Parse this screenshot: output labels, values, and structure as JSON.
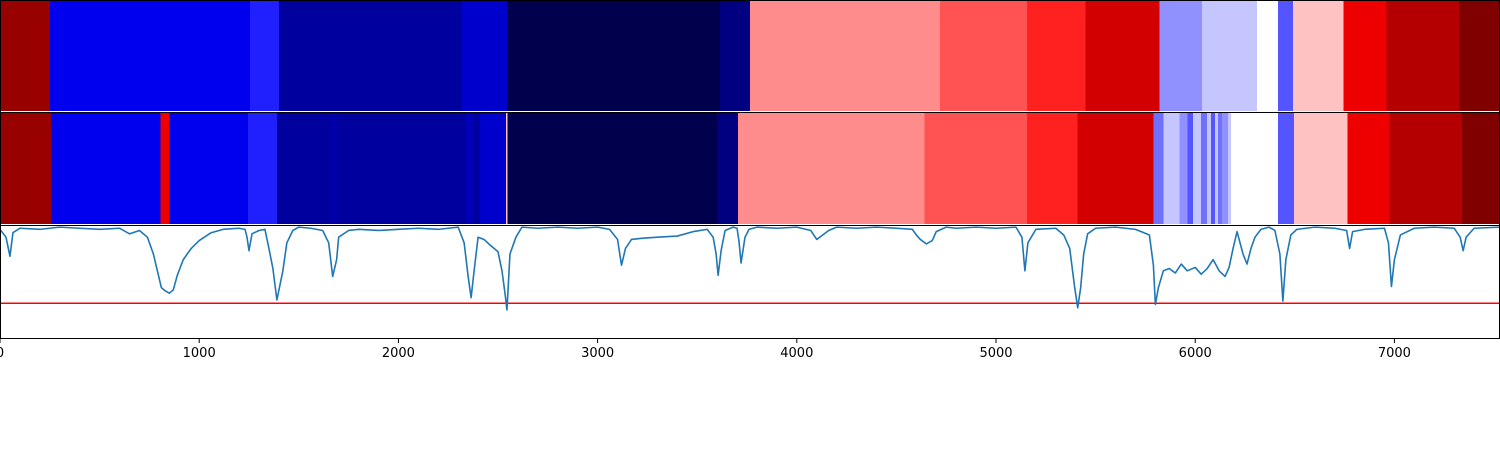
{
  "chart_data": {
    "type": "heatmap",
    "x_range": [
      0,
      7530
    ],
    "x_ticks": [
      0,
      1000,
      2000,
      3000,
      4000,
      5000,
      6000,
      7000
    ],
    "colormap": "seismic",
    "rows": [
      {
        "name": "segments-top",
        "segments": [
          {
            "start": 0,
            "end": 250,
            "color": "#990000"
          },
          {
            "start": 250,
            "end": 1255,
            "color": "#0000ee"
          },
          {
            "start": 1255,
            "end": 1400,
            "color": "#2020ff"
          },
          {
            "start": 1400,
            "end": 2320,
            "color": "#00009f"
          },
          {
            "start": 2320,
            "end": 2545,
            "color": "#0000cc"
          },
          {
            "start": 2545,
            "end": 3615,
            "color": "#00004c"
          },
          {
            "start": 3615,
            "end": 3765,
            "color": "#000080"
          },
          {
            "start": 3765,
            "end": 4720,
            "color": "#ff8c8c"
          },
          {
            "start": 4720,
            "end": 5155,
            "color": "#ff5252"
          },
          {
            "start": 5155,
            "end": 5450,
            "color": "#ff2020"
          },
          {
            "start": 5450,
            "end": 5820,
            "color": "#d20000"
          },
          {
            "start": 5820,
            "end": 6035,
            "color": "#9090ff"
          },
          {
            "start": 6035,
            "end": 6310,
            "color": "#c6c6ff"
          },
          {
            "start": 6310,
            "end": 6415,
            "color": "#ffffff"
          },
          {
            "start": 6415,
            "end": 6490,
            "color": "#5555ff"
          },
          {
            "start": 6490,
            "end": 6745,
            "color": "#ffc2c2"
          },
          {
            "start": 6745,
            "end": 6960,
            "color": "#ee0000"
          },
          {
            "start": 6960,
            "end": 7325,
            "color": "#b40000"
          },
          {
            "start": 7325,
            "end": 7530,
            "color": "#800000"
          }
        ]
      },
      {
        "name": "segments-bottom",
        "segments": [
          {
            "start": 0,
            "end": 255,
            "color": "#990000"
          },
          {
            "start": 255,
            "end": 805,
            "color": "#0000ee"
          },
          {
            "start": 805,
            "end": 850,
            "color": "#ee0000"
          },
          {
            "start": 850,
            "end": 1245,
            "color": "#0000ee"
          },
          {
            "start": 1245,
            "end": 1390,
            "color": "#2020ff"
          },
          {
            "start": 1390,
            "end": 1660,
            "color": "#00009f"
          },
          {
            "start": 1660,
            "end": 1690,
            "color": "#0000aa"
          },
          {
            "start": 1690,
            "end": 2340,
            "color": "#00009f"
          },
          {
            "start": 2340,
            "end": 2380,
            "color": "#0000b8"
          },
          {
            "start": 2380,
            "end": 2410,
            "color": "#00009f"
          },
          {
            "start": 2410,
            "end": 2540,
            "color": "#0000cc"
          },
          {
            "start": 2540,
            "end": 2548,
            "color": "#ffc2c2"
          },
          {
            "start": 2548,
            "end": 3600,
            "color": "#00004c"
          },
          {
            "start": 3600,
            "end": 3705,
            "color": "#000080"
          },
          {
            "start": 3705,
            "end": 4640,
            "color": "#ff8c8c"
          },
          {
            "start": 4640,
            "end": 5155,
            "color": "#ff5252"
          },
          {
            "start": 5155,
            "end": 5410,
            "color": "#ff2020"
          },
          {
            "start": 5410,
            "end": 5790,
            "color": "#d20000"
          },
          {
            "start": 5790,
            "end": 5840,
            "color": "#7070ff"
          },
          {
            "start": 5840,
            "end": 5920,
            "color": "#c6c6ff"
          },
          {
            "start": 5920,
            "end": 5960,
            "color": "#9090ff"
          },
          {
            "start": 5960,
            "end": 5990,
            "color": "#5555ff"
          },
          {
            "start": 5990,
            "end": 6030,
            "color": "#c6c6ff"
          },
          {
            "start": 6030,
            "end": 6060,
            "color": "#7070ff"
          },
          {
            "start": 6060,
            "end": 6080,
            "color": "#c6c6ff"
          },
          {
            "start": 6080,
            "end": 6100,
            "color": "#5555ff"
          },
          {
            "start": 6100,
            "end": 6115,
            "color": "#c6c6ff"
          },
          {
            "start": 6115,
            "end": 6135,
            "color": "#7070ff"
          },
          {
            "start": 6135,
            "end": 6165,
            "color": "#9090ff"
          },
          {
            "start": 6165,
            "end": 6180,
            "color": "#c6c6ff"
          },
          {
            "start": 6180,
            "end": 6415,
            "color": "#ffffff"
          },
          {
            "start": 6415,
            "end": 6495,
            "color": "#5555ff"
          },
          {
            "start": 6495,
            "end": 6765,
            "color": "#ffc2c2"
          },
          {
            "start": 6765,
            "end": 6975,
            "color": "#ee0000"
          },
          {
            "start": 6975,
            "end": 7340,
            "color": "#b40000"
          },
          {
            "start": 7340,
            "end": 7530,
            "color": "#800000"
          }
        ]
      }
    ],
    "line_series": {
      "name": "signal",
      "color": "#1f77b4",
      "y_range": [
        0,
        1
      ],
      "threshold": {
        "value": 0.31,
        "color": "#ff0000"
      },
      "points": [
        [
          0,
          0.97
        ],
        [
          30,
          0.9
        ],
        [
          50,
          0.73
        ],
        [
          65,
          0.94
        ],
        [
          100,
          0.98
        ],
        [
          200,
          0.97
        ],
        [
          300,
          0.99
        ],
        [
          400,
          0.98
        ],
        [
          500,
          0.97
        ],
        [
          600,
          0.98
        ],
        [
          650,
          0.93
        ],
        [
          700,
          0.96
        ],
        [
          740,
          0.9
        ],
        [
          770,
          0.75
        ],
        [
          790,
          0.6
        ],
        [
          810,
          0.45
        ],
        [
          830,
          0.42
        ],
        [
          850,
          0.4
        ],
        [
          870,
          0.43
        ],
        [
          890,
          0.56
        ],
        [
          920,
          0.7
        ],
        [
          960,
          0.8
        ],
        [
          1000,
          0.87
        ],
        [
          1060,
          0.94
        ],
        [
          1120,
          0.97
        ],
        [
          1200,
          0.98
        ],
        [
          1230,
          0.97
        ],
        [
          1240,
          0.9
        ],
        [
          1250,
          0.78
        ],
        [
          1265,
          0.93
        ],
        [
          1300,
          0.96
        ],
        [
          1330,
          0.97
        ],
        [
          1350,
          0.8
        ],
        [
          1370,
          0.62
        ],
        [
          1390,
          0.34
        ],
        [
          1405,
          0.47
        ],
        [
          1420,
          0.6
        ],
        [
          1440,
          0.85
        ],
        [
          1470,
          0.96
        ],
        [
          1500,
          0.99
        ],
        [
          1560,
          0.98
        ],
        [
          1620,
          0.96
        ],
        [
          1650,
          0.85
        ],
        [
          1670,
          0.55
        ],
        [
          1690,
          0.7
        ],
        [
          1700,
          0.9
        ],
        [
          1750,
          0.96
        ],
        [
          1800,
          0.97
        ],
        [
          1900,
          0.96
        ],
        [
          2000,
          0.97
        ],
        [
          2100,
          0.98
        ],
        [
          2200,
          0.97
        ],
        [
          2300,
          0.99
        ],
        [
          2330,
          0.85
        ],
        [
          2350,
          0.55
        ],
        [
          2365,
          0.36
        ],
        [
          2380,
          0.6
        ],
        [
          2400,
          0.9
        ],
        [
          2430,
          0.88
        ],
        [
          2460,
          0.83
        ],
        [
          2480,
          0.8
        ],
        [
          2500,
          0.77
        ],
        [
          2520,
          0.6
        ],
        [
          2535,
          0.4
        ],
        [
          2545,
          0.25
        ],
        [
          2560,
          0.75
        ],
        [
          2590,
          0.9
        ],
        [
          2620,
          0.99
        ],
        [
          2700,
          0.98
        ],
        [
          2800,
          0.99
        ],
        [
          2900,
          0.98
        ],
        [
          3000,
          0.99
        ],
        [
          3060,
          0.97
        ],
        [
          3100,
          0.88
        ],
        [
          3120,
          0.65
        ],
        [
          3140,
          0.8
        ],
        [
          3170,
          0.88
        ],
        [
          3220,
          0.89
        ],
        [
          3300,
          0.9
        ],
        [
          3400,
          0.91
        ],
        [
          3480,
          0.95
        ],
        [
          3550,
          0.97
        ],
        [
          3580,
          0.9
        ],
        [
          3595,
          0.75
        ],
        [
          3605,
          0.56
        ],
        [
          3620,
          0.78
        ],
        [
          3640,
          0.96
        ],
        [
          3680,
          0.99
        ],
        [
          3700,
          0.98
        ],
        [
          3710,
          0.86
        ],
        [
          3720,
          0.67
        ],
        [
          3740,
          0.9
        ],
        [
          3760,
          0.97
        ],
        [
          3800,
          0.99
        ],
        [
          3900,
          0.98
        ],
        [
          4000,
          0.99
        ],
        [
          4070,
          0.96
        ],
        [
          4100,
          0.88
        ],
        [
          4130,
          0.92
        ],
        [
          4160,
          0.96
        ],
        [
          4200,
          0.99
        ],
        [
          4300,
          0.98
        ],
        [
          4400,
          0.99
        ],
        [
          4500,
          0.98
        ],
        [
          4580,
          0.97
        ],
        [
          4600,
          0.92
        ],
        [
          4620,
          0.88
        ],
        [
          4650,
          0.84
        ],
        [
          4680,
          0.87
        ],
        [
          4700,
          0.95
        ],
        [
          4750,
          0.99
        ],
        [
          4800,
          0.98
        ],
        [
          4900,
          0.99
        ],
        [
          5000,
          0.98
        ],
        [
          5100,
          0.99
        ],
        [
          5130,
          0.9
        ],
        [
          5145,
          0.6
        ],
        [
          5160,
          0.85
        ],
        [
          5200,
          0.97
        ],
        [
          5300,
          0.98
        ],
        [
          5340,
          0.92
        ],
        [
          5370,
          0.8
        ],
        [
          5395,
          0.45
        ],
        [
          5410,
          0.27
        ],
        [
          5425,
          0.45
        ],
        [
          5440,
          0.75
        ],
        [
          5460,
          0.93
        ],
        [
          5500,
          0.98
        ],
        [
          5600,
          0.99
        ],
        [
          5700,
          0.97
        ],
        [
          5770,
          0.92
        ],
        [
          5790,
          0.65
        ],
        [
          5800,
          0.3
        ],
        [
          5815,
          0.45
        ],
        [
          5840,
          0.6
        ],
        [
          5870,
          0.62
        ],
        [
          5900,
          0.58
        ],
        [
          5930,
          0.66
        ],
        [
          5960,
          0.6
        ],
        [
          6000,
          0.63
        ],
        [
          6030,
          0.57
        ],
        [
          6060,
          0.62
        ],
        [
          6090,
          0.7
        ],
        [
          6120,
          0.6
        ],
        [
          6150,
          0.55
        ],
        [
          6170,
          0.63
        ],
        [
          6190,
          0.8
        ],
        [
          6210,
          0.95
        ],
        [
          6240,
          0.75
        ],
        [
          6260,
          0.66
        ],
        [
          6280,
          0.8
        ],
        [
          6300,
          0.9
        ],
        [
          6330,
          0.97
        ],
        [
          6370,
          0.99
        ],
        [
          6400,
          0.96
        ],
        [
          6425,
          0.75
        ],
        [
          6440,
          0.33
        ],
        [
          6455,
          0.7
        ],
        [
          6480,
          0.92
        ],
        [
          6510,
          0.97
        ],
        [
          6600,
          0.99
        ],
        [
          6700,
          0.98
        ],
        [
          6760,
          0.96
        ],
        [
          6775,
          0.8
        ],
        [
          6790,
          0.95
        ],
        [
          6850,
          0.97
        ],
        [
          6950,
          0.98
        ],
        [
          6970,
          0.85
        ],
        [
          6985,
          0.46
        ],
        [
          7000,
          0.7
        ],
        [
          7030,
          0.92
        ],
        [
          7100,
          0.98
        ],
        [
          7200,
          0.99
        ],
        [
          7300,
          0.98
        ],
        [
          7330,
          0.9
        ],
        [
          7345,
          0.78
        ],
        [
          7360,
          0.9
        ],
        [
          7400,
          0.98
        ],
        [
          7530,
          0.99
        ]
      ]
    }
  }
}
